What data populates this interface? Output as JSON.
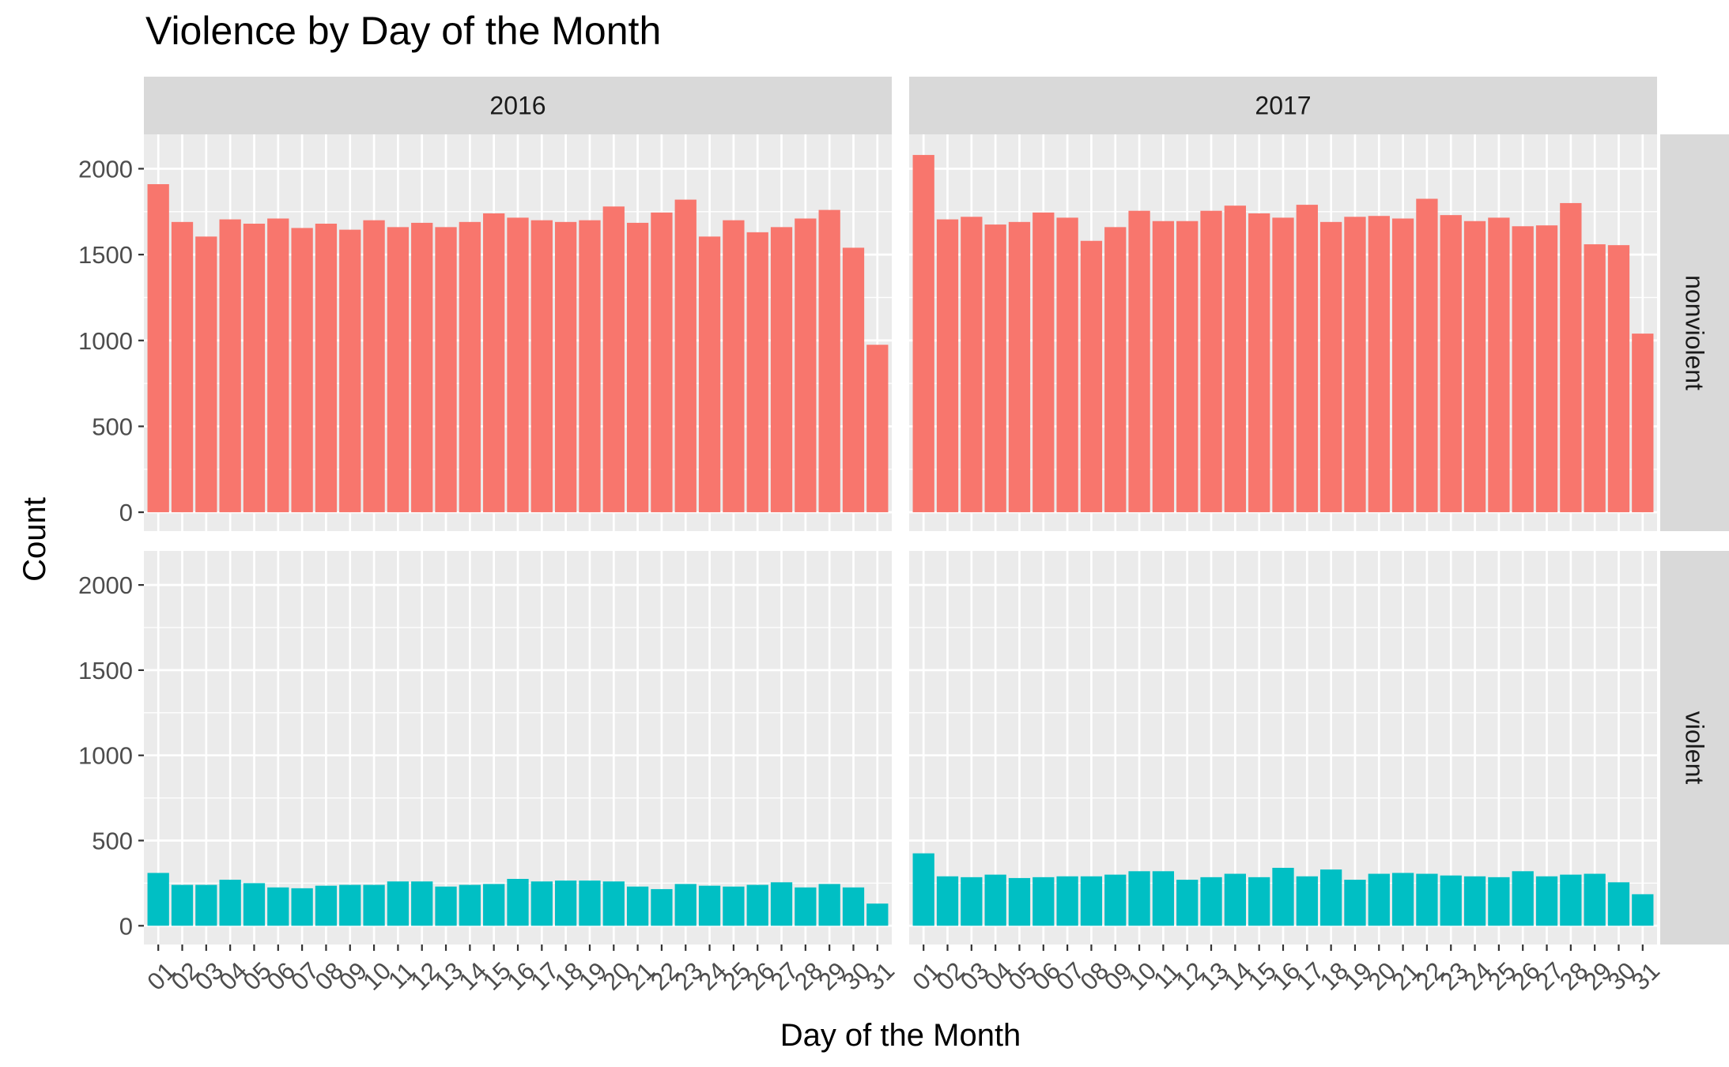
{
  "chart_data": {
    "type": "bar",
    "title": "Violence by Day of the Month",
    "xlabel": "Day of the Month",
    "ylabel": "Count",
    "ylim": [
      0,
      2200
    ],
    "yticks": [
      0,
      500,
      1000,
      1500,
      2000
    ],
    "grid": true,
    "legend": "none",
    "categories": [
      "01",
      "02",
      "03",
      "04",
      "05",
      "06",
      "07",
      "08",
      "09",
      "10",
      "11",
      "12",
      "13",
      "14",
      "15",
      "16",
      "17",
      "18",
      "19",
      "20",
      "21",
      "22",
      "23",
      "24",
      "25",
      "26",
      "27",
      "28",
      "29",
      "30",
      "31"
    ],
    "facet_columns": [
      "2016",
      "2017"
    ],
    "facet_rows": [
      "nonviolent",
      "violent"
    ],
    "colors": {
      "nonviolent": "#f8766d",
      "violent": "#00bfc4",
      "panel_bg": "#ebebeb",
      "strip_bg": "#d9d9d9"
    },
    "panels": [
      {
        "year": "2016",
        "category": "nonviolent",
        "values": [
          1910,
          1690,
          1605,
          1705,
          1680,
          1710,
          1655,
          1680,
          1645,
          1700,
          1660,
          1685,
          1660,
          1690,
          1740,
          1715,
          1700,
          1690,
          1700,
          1780,
          1685,
          1745,
          1820,
          1605,
          1700,
          1630,
          1660,
          1710,
          1760,
          1540,
          975
        ]
      },
      {
        "year": "2017",
        "category": "nonviolent",
        "values": [
          2080,
          1705,
          1720,
          1675,
          1690,
          1745,
          1715,
          1580,
          1660,
          1755,
          1695,
          1695,
          1755,
          1785,
          1740,
          1715,
          1790,
          1690,
          1720,
          1725,
          1710,
          1825,
          1730,
          1695,
          1715,
          1665,
          1670,
          1800,
          1560,
          1555,
          1040
        ]
      },
      {
        "year": "2016",
        "category": "violent",
        "values": [
          310,
          240,
          240,
          270,
          250,
          225,
          220,
          235,
          240,
          240,
          260,
          260,
          230,
          240,
          245,
          275,
          260,
          265,
          265,
          260,
          230,
          215,
          245,
          235,
          230,
          240,
          255,
          225,
          245,
          225,
          130
        ]
      },
      {
        "year": "2017",
        "category": "violent",
        "values": [
          425,
          290,
          285,
          300,
          280,
          285,
          290,
          290,
          300,
          320,
          320,
          270,
          285,
          305,
          285,
          340,
          290,
          330,
          270,
          305,
          310,
          305,
          295,
          290,
          285,
          320,
          290,
          300,
          305,
          255,
          185
        ]
      }
    ]
  }
}
